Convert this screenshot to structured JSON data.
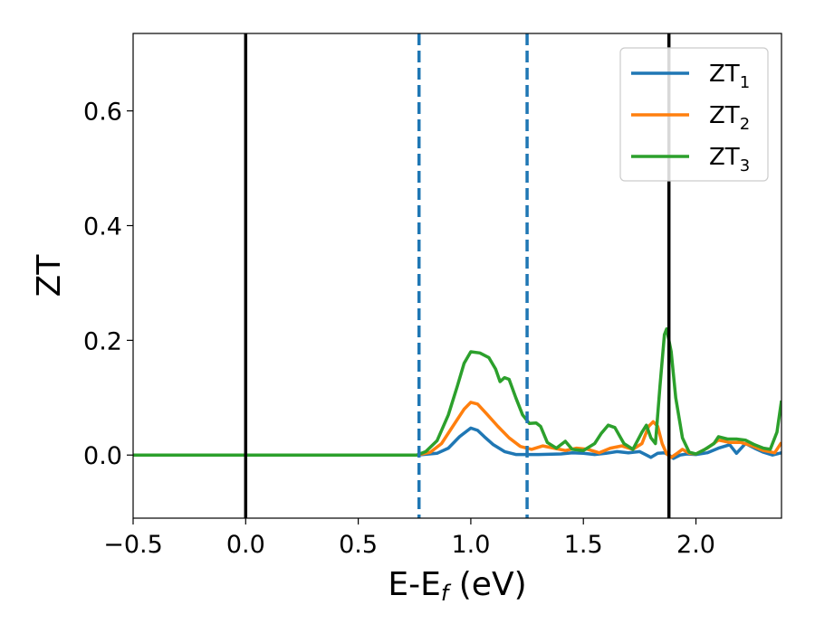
{
  "chart_data": {
    "type": "line",
    "title": "",
    "xlabel": {
      "base": "E-E",
      "sub": "f",
      "unit": " (eV)"
    },
    "ylabel": "ZT",
    "xlim": [
      -0.5,
      2.38
    ],
    "ylim": [
      -0.11,
      0.735
    ],
    "x_ticks": [
      -0.5,
      0.0,
      0.5,
      1.0,
      1.5,
      2.0
    ],
    "x_tick_labels": [
      "−0.5",
      "0.0",
      "0.5",
      "1.0",
      "1.5",
      "2.0"
    ],
    "y_ticks": [
      0.0,
      0.2,
      0.4,
      0.6
    ],
    "y_tick_labels": [
      "0.0",
      "0.2",
      "0.4",
      "0.6"
    ],
    "grid": false,
    "legend_position": "top-right",
    "vertical_lines": [
      {
        "x": 0.0,
        "style": "solid",
        "color": "#000000"
      },
      {
        "x": 1.88,
        "style": "solid",
        "color": "#000000"
      },
      {
        "x": 0.77,
        "style": "dashed",
        "color": "#1f77b4"
      },
      {
        "x": 1.25,
        "style": "dashed",
        "color": "#1f77b4"
      }
    ],
    "series": [
      {
        "name": "ZT",
        "name_sub": "1",
        "color": "#1f77b4",
        "points": [
          [
            -0.5,
            0
          ],
          [
            0.76,
            0
          ],
          [
            0.85,
            0.003
          ],
          [
            0.9,
            0.012
          ],
          [
            0.95,
            0.032
          ],
          [
            1.0,
            0.047
          ],
          [
            1.03,
            0.043
          ],
          [
            1.06,
            0.032
          ],
          [
            1.1,
            0.018
          ],
          [
            1.15,
            0.006
          ],
          [
            1.2,
            0.001
          ],
          [
            1.3,
            0.001
          ],
          [
            1.4,
            0.002
          ],
          [
            1.45,
            0.004
          ],
          [
            1.5,
            0.003
          ],
          [
            1.55,
            0.001
          ],
          [
            1.6,
            0.003
          ],
          [
            1.65,
            0.006
          ],
          [
            1.7,
            0.004
          ],
          [
            1.75,
            0.006
          ],
          [
            1.78,
            0.0
          ],
          [
            1.8,
            -0.004
          ],
          [
            1.83,
            0.003
          ],
          [
            1.86,
            0.004
          ],
          [
            1.88,
            0.0
          ],
          [
            1.9,
            -0.006
          ],
          [
            1.93,
            0.0
          ],
          [
            1.96,
            0.002
          ],
          [
            2.0,
            0.001
          ],
          [
            2.05,
            0.004
          ],
          [
            2.1,
            0.012
          ],
          [
            2.15,
            0.018
          ],
          [
            2.18,
            0.003
          ],
          [
            2.22,
            0.02
          ],
          [
            2.26,
            0.012
          ],
          [
            2.3,
            0.005
          ],
          [
            2.34,
            0.0
          ],
          [
            2.38,
            0.004
          ]
        ]
      },
      {
        "name": "ZT",
        "name_sub": "2",
        "color": "#ff7f0e",
        "points": [
          [
            -0.5,
            0
          ],
          [
            0.76,
            0
          ],
          [
            0.82,
            0.005
          ],
          [
            0.87,
            0.02
          ],
          [
            0.92,
            0.05
          ],
          [
            0.97,
            0.08
          ],
          [
            1.0,
            0.092
          ],
          [
            1.03,
            0.089
          ],
          [
            1.07,
            0.072
          ],
          [
            1.12,
            0.05
          ],
          [
            1.17,
            0.03
          ],
          [
            1.22,
            0.015
          ],
          [
            1.27,
            0.01
          ],
          [
            1.32,
            0.016
          ],
          [
            1.37,
            0.012
          ],
          [
            1.42,
            0.008
          ],
          [
            1.47,
            0.012
          ],
          [
            1.52,
            0.01
          ],
          [
            1.57,
            0.004
          ],
          [
            1.62,
            0.012
          ],
          [
            1.67,
            0.016
          ],
          [
            1.72,
            0.01
          ],
          [
            1.76,
            0.02
          ],
          [
            1.79,
            0.05
          ],
          [
            1.81,
            0.058
          ],
          [
            1.83,
            0.05
          ],
          [
            1.85,
            0.02
          ],
          [
            1.87,
            0.002
          ],
          [
            1.89,
            -0.004
          ],
          [
            1.92,
            0.004
          ],
          [
            1.94,
            0.01
          ],
          [
            1.97,
            0.003
          ],
          [
            2.0,
            0.002
          ],
          [
            2.05,
            0.012
          ],
          [
            2.1,
            0.026
          ],
          [
            2.15,
            0.022
          ],
          [
            2.2,
            0.022
          ],
          [
            2.25,
            0.016
          ],
          [
            2.3,
            0.008
          ],
          [
            2.35,
            0.004
          ],
          [
            2.38,
            0.022
          ]
        ]
      },
      {
        "name": "ZT",
        "name_sub": "3",
        "color": "#2ca02c",
        "points": [
          [
            -0.5,
            0
          ],
          [
            0.76,
            0
          ],
          [
            0.8,
            0.006
          ],
          [
            0.85,
            0.025
          ],
          [
            0.9,
            0.07
          ],
          [
            0.94,
            0.12
          ],
          [
            0.97,
            0.16
          ],
          [
            1.0,
            0.18
          ],
          [
            1.04,
            0.178
          ],
          [
            1.08,
            0.17
          ],
          [
            1.11,
            0.15
          ],
          [
            1.13,
            0.128
          ],
          [
            1.15,
            0.135
          ],
          [
            1.17,
            0.132
          ],
          [
            1.2,
            0.1
          ],
          [
            1.23,
            0.07
          ],
          [
            1.26,
            0.055
          ],
          [
            1.29,
            0.056
          ],
          [
            1.31,
            0.05
          ],
          [
            1.34,
            0.022
          ],
          [
            1.38,
            0.012
          ],
          [
            1.42,
            0.024
          ],
          [
            1.45,
            0.01
          ],
          [
            1.5,
            0.008
          ],
          [
            1.55,
            0.02
          ],
          [
            1.58,
            0.038
          ],
          [
            1.61,
            0.052
          ],
          [
            1.64,
            0.048
          ],
          [
            1.68,
            0.02
          ],
          [
            1.72,
            0.01
          ],
          [
            1.76,
            0.04
          ],
          [
            1.78,
            0.052
          ],
          [
            1.8,
            0.03
          ],
          [
            1.82,
            0.02
          ],
          [
            1.84,
            0.12
          ],
          [
            1.86,
            0.21
          ],
          [
            1.87,
            0.22
          ],
          [
            1.89,
            0.18
          ],
          [
            1.91,
            0.1
          ],
          [
            1.94,
            0.03
          ],
          [
            1.97,
            0.005
          ],
          [
            2.0,
            0.002
          ],
          [
            2.04,
            0.01
          ],
          [
            2.08,
            0.02
          ],
          [
            2.1,
            0.032
          ],
          [
            2.14,
            0.028
          ],
          [
            2.18,
            0.028
          ],
          [
            2.22,
            0.026
          ],
          [
            2.26,
            0.018
          ],
          [
            2.3,
            0.012
          ],
          [
            2.33,
            0.01
          ],
          [
            2.36,
            0.04
          ],
          [
            2.38,
            0.095
          ]
        ]
      }
    ]
  }
}
